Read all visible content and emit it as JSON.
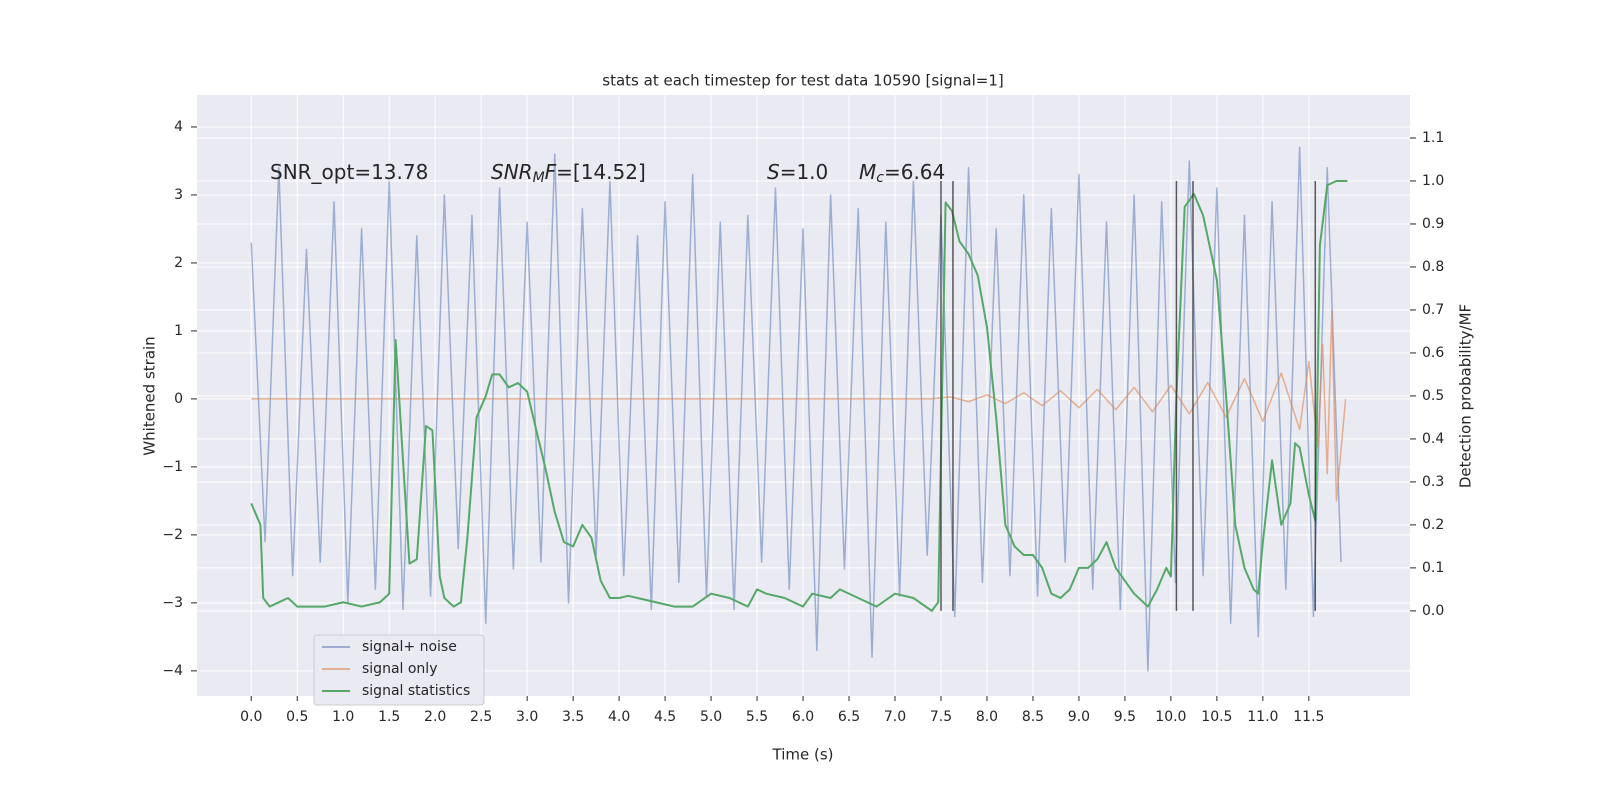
{
  "chart_data": {
    "type": "line",
    "title": "stats at each timestep for test data 10590 [signal=1]",
    "xlabel": "Time (s)",
    "ylabel": "Whitened strain",
    "y2label": "Detection probability/MF",
    "xlim": [
      -0.59,
      12.6
    ],
    "ylim": [
      -4.37,
      4.47
    ],
    "y2lim": [
      -0.198,
      1.2
    ],
    "xticks": [
      {
        "value": 0,
        "label": "0.0"
      },
      0.5,
      {
        "value": 1,
        "label": "1.0"
      },
      1.5,
      {
        "value": 2,
        "label": "2.0"
      },
      2.5,
      {
        "value": 3,
        "label": "3.0"
      },
      3.5,
      {
        "value": 4,
        "label": "4.0"
      },
      4.5,
      {
        "value": 5,
        "label": "5.0"
      },
      5.5,
      {
        "value": 6,
        "label": "6.0"
      },
      6.5,
      {
        "value": 7,
        "label": "7.0"
      },
      7.5,
      {
        "value": 8,
        "label": "8.0"
      },
      8.5,
      {
        "value": 9,
        "label": "9.0"
      },
      9.5,
      {
        "value": 10,
        "label": "10.0"
      },
      10.5,
      {
        "value": 11,
        "label": "11.0"
      },
      11.5
    ],
    "yticks": [
      {
        "value": -4,
        "label": "−4"
      },
      {
        "value": -3,
        "label": "−3"
      },
      {
        "value": -2,
        "label": "−2"
      },
      {
        "value": -1,
        "label": "−1"
      },
      0,
      1,
      2,
      3,
      4
    ],
    "y2ticks": [
      {
        "value": 0,
        "label": "0.0"
      },
      0.1,
      0.2,
      0.3,
      0.4,
      0.5,
      0.6,
      0.7,
      0.8,
      0.9,
      {
        "value": 1,
        "label": "1.0"
      },
      1.1
    ],
    "grid": true,
    "legend_loc": "lower left",
    "series": [
      {
        "name": "signal+ noise",
        "color": "#4c72b0",
        "x": [
          0,
          0.15,
          0.3,
          0.45,
          0.6,
          0.75,
          0.9,
          1.05,
          1.2,
          1.35,
          1.5,
          1.65,
          1.8,
          1.95,
          2.1,
          2.25,
          2.4,
          2.55,
          2.7,
          2.85,
          3.0,
          3.15,
          3.3,
          3.45,
          3.6,
          3.75,
          3.9,
          4.05,
          4.2,
          4.35,
          4.5,
          4.65,
          4.8,
          4.95,
          5.1,
          5.25,
          5.4,
          5.55,
          5.7,
          5.85,
          6.0,
          6.15,
          6.3,
          6.45,
          6.6,
          6.75,
          6.9,
          7.05,
          7.2,
          7.35,
          7.5,
          7.65,
          7.8,
          7.95,
          8.1,
          8.25,
          8.4,
          8.55,
          8.7,
          8.85,
          9.0,
          9.15,
          9.3,
          9.45,
          9.6,
          9.75,
          9.9,
          10.05,
          10.2,
          10.35,
          10.5,
          10.65,
          10.8,
          10.95,
          11.1,
          11.25,
          11.4,
          11.55,
          11.7,
          11.85
        ],
        "values": [
          2.3,
          -2.1,
          3.4,
          -2.6,
          2.2,
          -2.4,
          2.9,
          -3.0,
          2.5,
          -2.8,
          3.2,
          -3.1,
          2.4,
          -2.9,
          3.0,
          -2.2,
          2.7,
          -3.3,
          3.1,
          -2.5,
          2.6,
          -2.4,
          3.6,
          -3.0,
          2.8,
          -2.3,
          3.2,
          -2.6,
          2.4,
          -3.1,
          2.9,
          -2.7,
          3.3,
          -2.9,
          2.6,
          -3.1,
          2.7,
          -2.4,
          3.1,
          -2.8,
          2.5,
          -3.7,
          3.0,
          -2.5,
          2.8,
          -3.8,
          2.6,
          -2.9,
          3.2,
          -2.3,
          2.7,
          -3.2,
          3.4,
          -2.7,
          2.5,
          -2.6,
          3.0,
          -2.9,
          2.8,
          -2.4,
          3.3,
          -2.8,
          2.6,
          -3.1,
          3.0,
          -4.0,
          2.9,
          -2.7,
          3.5,
          -2.6,
          3.1,
          -3.3,
          2.7,
          -3.5,
          2.9,
          -2.8,
          3.7,
          -3.2,
          3.4,
          -2.4
        ]
      },
      {
        "name": "signal only",
        "color": "#dd8452",
        "x": [
          0,
          7.4,
          7.6,
          7.8,
          8.0,
          8.2,
          8.4,
          8.6,
          8.8,
          9.0,
          9.2,
          9.4,
          9.6,
          9.8,
          10.0,
          10.2,
          10.4,
          10.6,
          10.8,
          11.0,
          11.2,
          11.4,
          11.5,
          11.6,
          11.65,
          11.7,
          11.75,
          11.8,
          11.9
        ],
        "values": [
          0,
          0,
          0.03,
          -0.04,
          0.06,
          -0.07,
          0.09,
          -0.1,
          0.12,
          -0.13,
          0.14,
          -0.16,
          0.17,
          -0.19,
          0.2,
          -0.22,
          0.24,
          -0.27,
          0.3,
          -0.33,
          0.38,
          -0.45,
          0.55,
          -0.7,
          0.8,
          -1.1,
          1.3,
          -1.5,
          0
        ]
      },
      {
        "name": "signal statistics",
        "color": "#55a868",
        "axis": "y2",
        "x": [
          0,
          0.1,
          0.13,
          0.2,
          0.3,
          0.4,
          0.5,
          0.6,
          0.8,
          1.0,
          1.2,
          1.4,
          1.5,
          1.57,
          1.65,
          1.72,
          1.8,
          1.9,
          1.97,
          2.05,
          2.1,
          2.2,
          2.28,
          2.35,
          2.45,
          2.55,
          2.62,
          2.7,
          2.8,
          2.9,
          3.0,
          3.1,
          3.2,
          3.3,
          3.4,
          3.5,
          3.6,
          3.7,
          3.8,
          3.9,
          4.0,
          4.1,
          4.2,
          4.4,
          4.6,
          4.8,
          5.0,
          5.2,
          5.4,
          5.5,
          5.6,
          5.8,
          6.0,
          6.1,
          6.3,
          6.4,
          6.6,
          6.8,
          7.0,
          7.2,
          7.4,
          7.47,
          7.55,
          7.62,
          7.7,
          7.8,
          7.9,
          8.0,
          8.1,
          8.2,
          8.3,
          8.4,
          8.5,
          8.6,
          8.7,
          8.8,
          8.9,
          9.0,
          9.1,
          9.2,
          9.3,
          9.4,
          9.5,
          9.6,
          9.75,
          9.85,
          9.95,
          10.0,
          10.06,
          10.15,
          10.25,
          10.35,
          10.5,
          10.6,
          10.7,
          10.8,
          10.9,
          10.95,
          11.0,
          11.1,
          11.2,
          11.3,
          11.35,
          11.4,
          11.5,
          11.57,
          11.62,
          11.7,
          11.8,
          11.92
        ],
        "values": [
          0.25,
          0.2,
          0.03,
          0.01,
          0.02,
          0.03,
          0.01,
          0.01,
          0.01,
          0.02,
          0.01,
          0.02,
          0.04,
          0.63,
          0.35,
          0.11,
          0.12,
          0.43,
          0.42,
          0.08,
          0.03,
          0.01,
          0.02,
          0.17,
          0.45,
          0.5,
          0.55,
          0.55,
          0.52,
          0.53,
          0.51,
          0.42,
          0.33,
          0.23,
          0.16,
          0.15,
          0.2,
          0.17,
          0.07,
          0.03,
          0.03,
          0.035,
          0.03,
          0.02,
          0.01,
          0.01,
          0.04,
          0.03,
          0.01,
          0.05,
          0.04,
          0.03,
          0.01,
          0.04,
          0.03,
          0.05,
          0.03,
          0.01,
          0.04,
          0.03,
          0.0,
          0.02,
          0.95,
          0.93,
          0.86,
          0.83,
          0.78,
          0.66,
          0.45,
          0.2,
          0.15,
          0.13,
          0.13,
          0.1,
          0.04,
          0.03,
          0.05,
          0.1,
          0.1,
          0.12,
          0.16,
          0.1,
          0.07,
          0.04,
          0.01,
          0.05,
          0.1,
          0.08,
          0.5,
          0.94,
          0.97,
          0.92,
          0.77,
          0.5,
          0.2,
          0.1,
          0.05,
          0.04,
          0.16,
          0.35,
          0.2,
          0.25,
          0.39,
          0.38,
          0.27,
          0.21,
          0.85,
          0.99,
          1.0,
          1.0
        ]
      }
    ],
    "vlines": {
      "color": "#333333",
      "x": [
        7.5,
        7.63,
        10.06,
        10.24,
        11.57
      ],
      "y2": [
        0,
        1
      ]
    },
    "annotations": [
      [
        {
          "text": "SNR_opt=13.78"
        }
      ],
      [
        {
          "text": "SNR",
          "style": "italic"
        },
        {
          "text": "M",
          "style": "italic-sub"
        },
        {
          "text": "F",
          "style": "italic"
        },
        {
          "text": "=[14.52]"
        }
      ],
      [
        {
          "text": "S",
          "style": "italic"
        },
        {
          "text": "=1.0"
        }
      ],
      [
        {
          "text": "M",
          "style": "italic"
        },
        {
          "text": "c",
          "style": "italic-sub"
        },
        {
          "text": "=6.64"
        }
      ]
    ]
  }
}
